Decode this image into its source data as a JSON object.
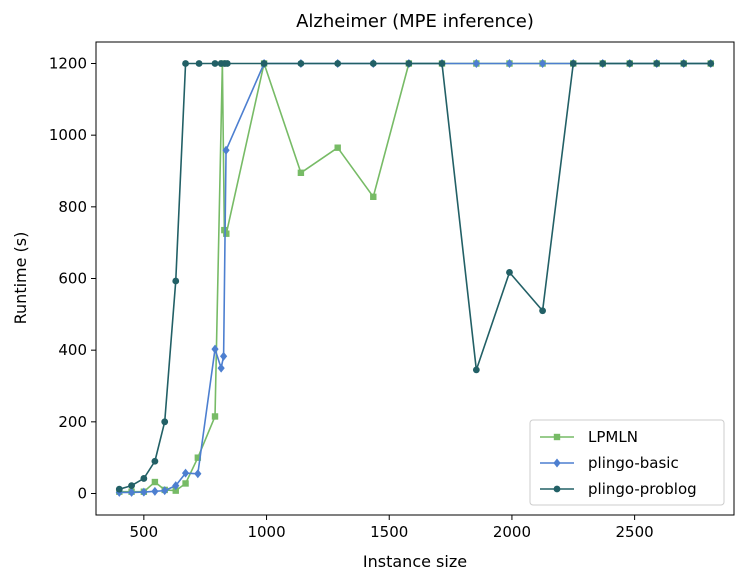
{
  "chart_data": {
    "type": "line",
    "title": "Alzheimer (MPE inference)",
    "xlabel": "Instance size",
    "ylabel": "Runtime (s)",
    "xlim": [
      305,
      2905
    ],
    "ylim": [
      -60,
      1260
    ],
    "xticks": [
      500,
      1000,
      1500,
      2000,
      2500
    ],
    "yticks": [
      0,
      200,
      400,
      600,
      800,
      1000,
      1200
    ],
    "grid": false,
    "legend_position": "bottom-right",
    "series": [
      {
        "name": "LPMLN",
        "color": "#77bb66",
        "marker": "square",
        "x": [
          400,
          450,
          500,
          545,
          585,
          630,
          670,
          720,
          790,
          820,
          828,
          836,
          990,
          1140,
          1290,
          1435,
          1580,
          1715,
          1855,
          1990,
          2125,
          2250,
          2370,
          2480,
          2590,
          2700,
          2810
        ],
        "y": [
          5,
          5,
          5,
          32,
          10,
          8,
          28,
          100,
          215,
          1200,
          735,
          725,
          1200,
          895,
          965,
          828,
          1200,
          1200,
          1200,
          1200,
          1200,
          1200,
          1200,
          1200,
          1200,
          1200,
          1200
        ]
      },
      {
        "name": "plingo-basic",
        "color": "#4d7fd0",
        "marker": "diamond",
        "x": [
          400,
          450,
          500,
          545,
          585,
          630,
          670,
          720,
          790,
          815,
          825,
          835,
          990,
          1140,
          1290,
          1435,
          1580,
          1715,
          1855,
          1990,
          2125,
          2250,
          2370,
          2480,
          2590,
          2700,
          2810
        ],
        "y": [
          3,
          3,
          4,
          6,
          8,
          22,
          57,
          55,
          403,
          350,
          383,
          958,
          1200,
          1200,
          1200,
          1200,
          1200,
          1200,
          1200,
          1200,
          1200,
          1200,
          1200,
          1200,
          1200,
          1200,
          1200
        ]
      },
      {
        "name": "plingo-problog",
        "color": "#226066",
        "marker": "circle",
        "x": [
          400,
          450,
          500,
          545,
          585,
          630,
          670,
          725,
          790,
          815,
          830,
          840,
          990,
          1140,
          1290,
          1435,
          1580,
          1715,
          1855,
          1990,
          2125,
          2250,
          2370,
          2480,
          2590,
          2700,
          2810
        ],
        "y": [
          12,
          22,
          42,
          90,
          200,
          593,
          1200,
          1200,
          1200,
          1200,
          1200,
          1200,
          1200,
          1200,
          1200,
          1200,
          1200,
          1200,
          345,
          617,
          510,
          1200,
          1200,
          1200,
          1200,
          1200,
          1200
        ]
      }
    ]
  }
}
